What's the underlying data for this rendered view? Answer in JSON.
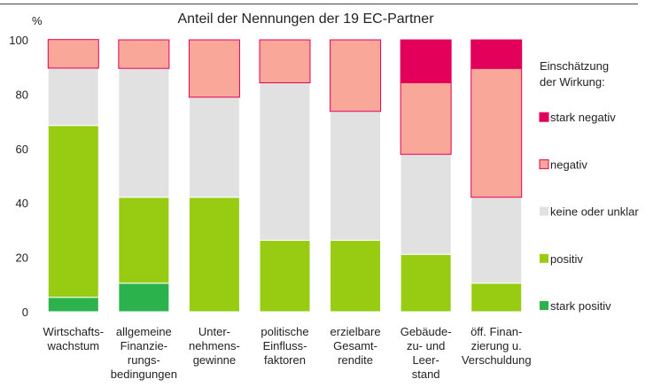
{
  "chart_data": {
    "type": "stacked_bar",
    "title": "Anteil der Nennungen der 19 EC-Partner",
    "y_label": "%",
    "categories": [
      "Wirtschafts-\nwachstum",
      "allgemeine\nFinanzie-\nrungs-\nbedingungen",
      "Unter-\nnehmens-\ngewinne",
      "politische\nEinfluss-\nfaktoren",
      "erzielbare\nGesamt-\nrendite",
      "Gebäude-\nzu- und\nLeer-\nstand",
      "öff. Finan-\nzierung u.\nVerschuldung"
    ],
    "series": [
      {
        "name": "stark positiv",
        "color": "#2bb24c",
        "values": [
          5.3,
          10.5,
          0,
          0,
          0,
          0,
          0
        ]
      },
      {
        "name": "positiv",
        "color": "#97cc12",
        "values": [
          63.2,
          31.6,
          42.1,
          26.3,
          26.3,
          21.1,
          10.5
        ]
      },
      {
        "name": "keine oder unklar",
        "color": "#e1e1e1",
        "values": [
          21.1,
          47.4,
          36.8,
          57.9,
          47.4,
          36.8,
          31.6
        ]
      },
      {
        "name": "negativ",
        "color": "#f9a798",
        "values": [
          10.5,
          10.5,
          21.1,
          15.8,
          26.3,
          26.3,
          47.4
        ]
      },
      {
        "name": "stark negativ",
        "color": "#e2005a",
        "values": [
          0,
          0,
          0,
          0,
          0,
          15.8,
          10.5
        ]
      }
    ],
    "legend_title": "Einschätzung\nder Wirkung:",
    "ylim": [
      0,
      100
    ],
    "yticks": [
      0,
      20,
      40,
      60,
      80,
      100
    ],
    "grid": false
  }
}
